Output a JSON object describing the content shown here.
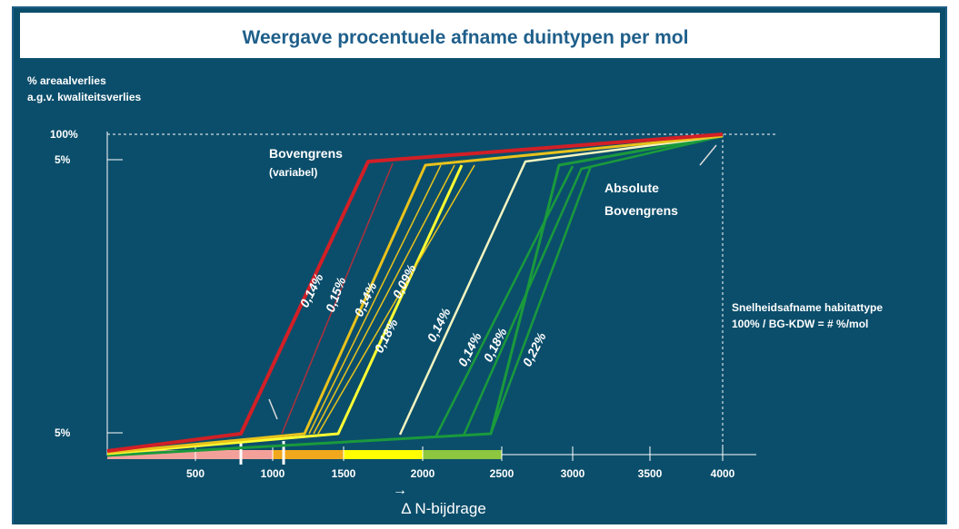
{
  "title": "Weergave procentuele afname duintypen per mol",
  "y_axis_label": [
    "% areaalverlies",
    "a.g.v. kwaliteitsverlies"
  ],
  "y_ticks": [
    "100%",
    "5%",
    "5%"
  ],
  "x_ticks": [
    "500",
    "1000",
    "1500",
    "2000",
    "2500",
    "3000",
    "3500",
    "4000"
  ],
  "x_axis_label": "Δ N-bijdrage",
  "x_axis_arrow": "→",
  "annotations": {
    "bovengrens": "Bovengrens",
    "variabel": "(variabel)",
    "absolute_1": "Absolute",
    "absolute_2": "Bovengrens",
    "snelheid_1": "Snelheidsafname habitattype",
    "snelheid_2": "100% / BG-KDW =  #  %/mol"
  },
  "line_labels": [
    "0,14%",
    "0,15%",
    "0,14%",
    "0,09%",
    "0,18%",
    "0,14%",
    "0,14%",
    "0,18%",
    "0,22%"
  ]
}
